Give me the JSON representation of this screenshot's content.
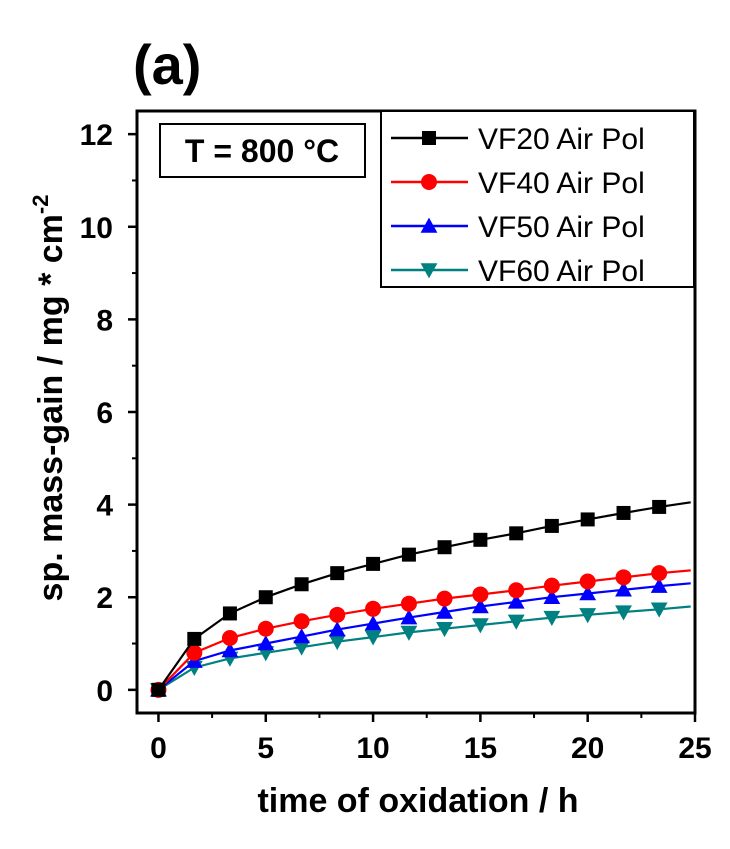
{
  "panel_label": "(a)",
  "chart_data": {
    "type": "scatter",
    "title": "",
    "xlabel": "time of oxidation / h",
    "ylabel": "sp. mass-gain / mg * cm",
    "ylabel_exponent": "-2",
    "annotation": "T = 800 °C",
    "xlim": [
      -1,
      25
    ],
    "ylim": [
      -0.5,
      12.5
    ],
    "x_ticks": [
      0,
      5,
      10,
      15,
      20,
      25
    ],
    "y_ticks": [
      0,
      2,
      4,
      6,
      8,
      10,
      12
    ],
    "grid": false,
    "legend_position": "top-right",
    "series": [
      {
        "name": "VF20 Air Pol",
        "color": "#000000",
        "marker": "square",
        "x": [
          0,
          1.67,
          3.33,
          5,
          6.67,
          8.33,
          10,
          11.67,
          13.33,
          15,
          16.67,
          18.33,
          20,
          21.67,
          23.33
        ],
        "y": [
          0,
          1.1,
          1.65,
          2.0,
          2.28,
          2.52,
          2.72,
          2.92,
          3.08,
          3.24,
          3.38,
          3.54,
          3.68,
          3.82,
          3.95
        ],
        "fit_end": [
          24.8,
          4.05
        ]
      },
      {
        "name": "VF40 Air Pol",
        "color": "#ff0000",
        "marker": "circle",
        "x": [
          0,
          1.67,
          3.33,
          5,
          6.67,
          8.33,
          10,
          11.67,
          13.33,
          15,
          16.67,
          18.33,
          20,
          21.67,
          23.33
        ],
        "y": [
          0,
          0.8,
          1.12,
          1.32,
          1.48,
          1.62,
          1.75,
          1.86,
          1.97,
          2.06,
          2.15,
          2.25,
          2.34,
          2.43,
          2.52
        ],
        "fit_end": [
          24.8,
          2.58
        ]
      },
      {
        "name": "VF50 Air Pol",
        "color": "#0000ff",
        "marker": "triangle-up",
        "x": [
          0,
          1.67,
          3.33,
          5,
          6.67,
          8.33,
          10,
          11.67,
          13.33,
          15,
          16.67,
          18.33,
          20,
          21.67,
          23.33
        ],
        "y": [
          0,
          0.62,
          0.85,
          1.0,
          1.15,
          1.3,
          1.43,
          1.56,
          1.68,
          1.8,
          1.9,
          2.0,
          2.08,
          2.16,
          2.24
        ],
        "fit_end": [
          24.8,
          2.3
        ]
      },
      {
        "name": "VF60 Air Pol",
        "color": "#008080",
        "marker": "triangle-down",
        "x": [
          0,
          1.67,
          3.33,
          5,
          6.67,
          8.33,
          10,
          11.67,
          13.33,
          15,
          16.67,
          18.33,
          20,
          21.67,
          23.33
        ],
        "y": [
          0,
          0.48,
          0.68,
          0.8,
          0.92,
          1.04,
          1.14,
          1.24,
          1.32,
          1.4,
          1.48,
          1.56,
          1.62,
          1.68,
          1.74
        ],
        "fit_end": [
          24.8,
          1.8
        ]
      }
    ]
  }
}
